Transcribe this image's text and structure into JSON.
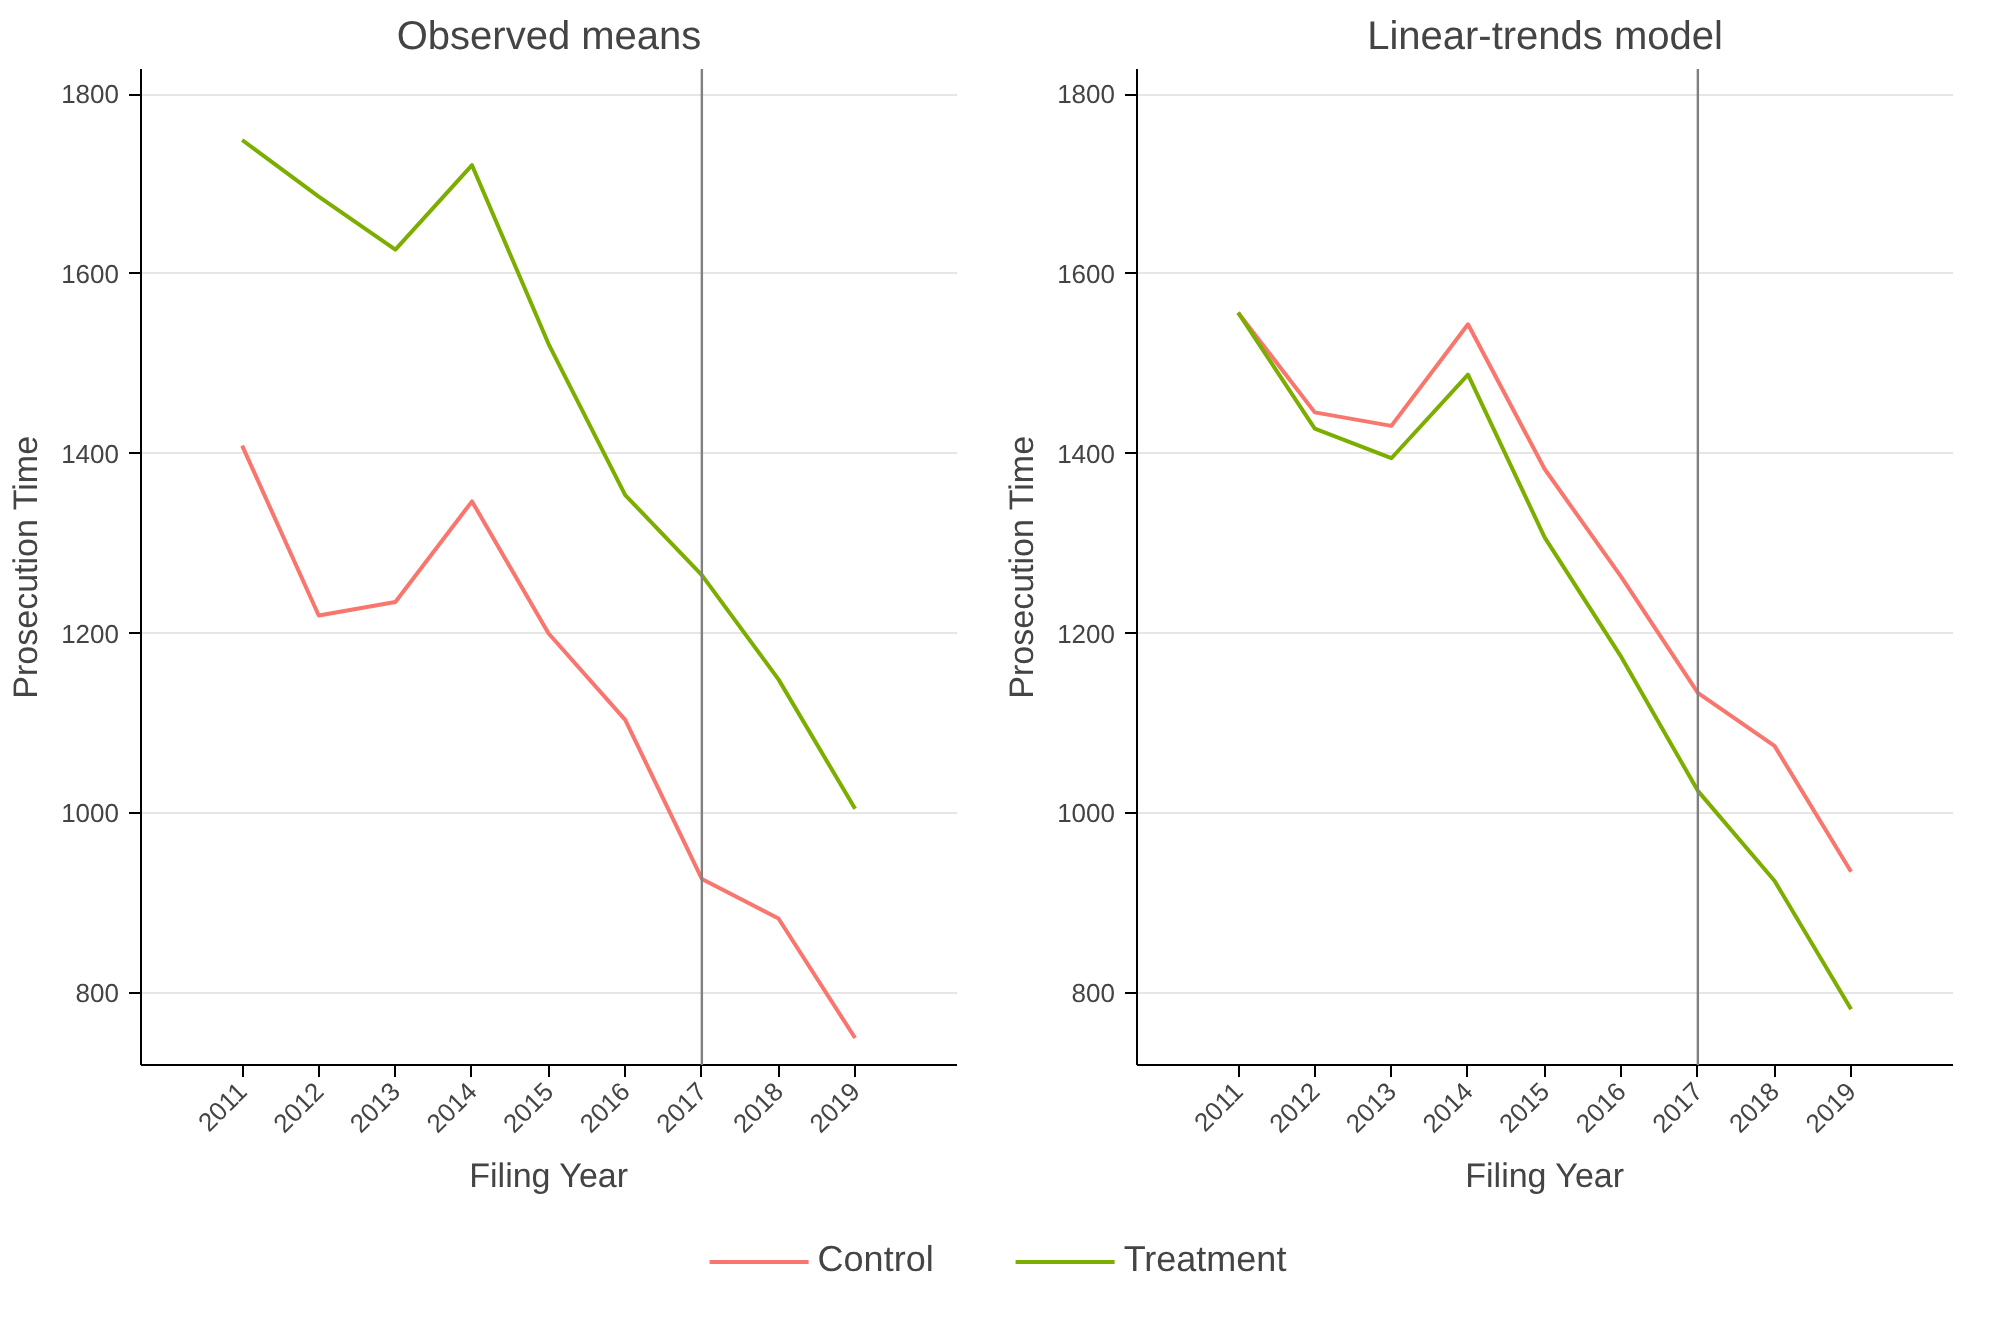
{
  "chart_data": [
    {
      "type": "line",
      "title": "Observed means",
      "xlabel": "Filing Year",
      "ylabel": "Prosecution Time",
      "x": [
        2011,
        2012,
        2013,
        2014,
        2015,
        2016,
        2017,
        2018,
        2019
      ],
      "series": [
        {
          "name": "Control",
          "color": "#f8766d",
          "values": [
            1409,
            1220,
            1235,
            1347,
            1200,
            1104,
            927,
            883,
            750
          ]
        },
        {
          "name": "Treatment",
          "color": "#7cae00",
          "values": [
            1749,
            1686,
            1627,
            1721,
            1522,
            1354,
            1265,
            1149,
            1005
          ]
        }
      ],
      "xlim": [
        2009.68,
        2020.33
      ],
      "xticks": [
        2011,
        2012,
        2013,
        2014,
        2015,
        2016,
        2017,
        2018,
        2019
      ],
      "ylim": [
        720,
        1828
      ],
      "yticks": [
        800,
        1000,
        1200,
        1400,
        1600,
        1800
      ],
      "ref_lines": [
        {
          "axis": "x",
          "value": 2017,
          "color": "#808080"
        }
      ],
      "grid": "y",
      "legend": "bottom"
    },
    {
      "type": "line",
      "title": "Linear-trends model",
      "xlabel": "Filing Year",
      "ylabel": "Prosecution Time",
      "x": [
        2011,
        2012,
        2013,
        2014,
        2015,
        2016,
        2017,
        2018,
        2019
      ],
      "series": [
        {
          "color": "#f8766d",
          "values": [
            1557,
            1446,
            1431,
            1544,
            1383,
            1263,
            1134,
            1075,
            935
          ]
        },
        {
          "color": "#7cae00",
          "values": [
            1557,
            1428,
            1395,
            1488,
            1307,
            1174,
            1025,
            925,
            782
          ]
        }
      ],
      "xlim": [
        2009.68,
        2020.33
      ],
      "xticks": [
        2011,
        2012,
        2013,
        2014,
        2015,
        2016,
        2017,
        2018,
        2019
      ],
      "ylim": [
        720,
        1828
      ],
      "yticks": [
        800,
        1000,
        1200,
        1400,
        1600,
        1800
      ],
      "ref_lines": [
        {
          "axis": "x",
          "value": 2017,
          "color": "#808080"
        }
      ],
      "grid": "y"
    }
  ]
}
